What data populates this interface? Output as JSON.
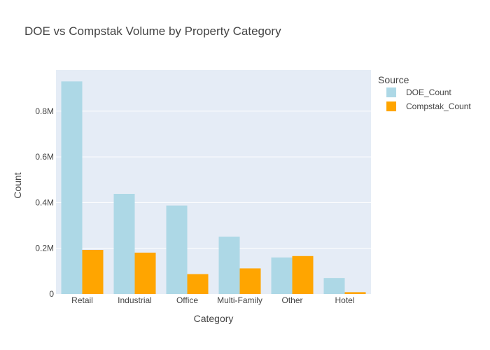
{
  "chart_data": {
    "type": "bar",
    "title": "DOE vs Compstak Volume by Property Category",
    "xlabel": "Category",
    "ylabel": "Count",
    "categories": [
      "Retail",
      "Industrial",
      "Office",
      "Multi-Family",
      "Other",
      "Hotel"
    ],
    "series": [
      {
        "name": "DOE_Count",
        "color": "#add8e6",
        "values": [
          930000,
          438000,
          387000,
          251000,
          160000,
          70000
        ]
      },
      {
        "name": "Compstak_Count",
        "color": "#ffa500",
        "values": [
          193000,
          181000,
          87000,
          112000,
          166000,
          8000
        ]
      }
    ],
    "ylim": [
      0,
      980000
    ],
    "yticks": [
      {
        "value": 0,
        "label": "0"
      },
      {
        "value": 200000,
        "label": "0.2M"
      },
      {
        "value": 400000,
        "label": "0.4M"
      },
      {
        "value": 600000,
        "label": "0.6M"
      },
      {
        "value": 800000,
        "label": "0.8M"
      }
    ],
    "legend": {
      "title": "Source",
      "position": "top-right"
    },
    "grid": true,
    "plot_background": "#e5ecf6"
  }
}
